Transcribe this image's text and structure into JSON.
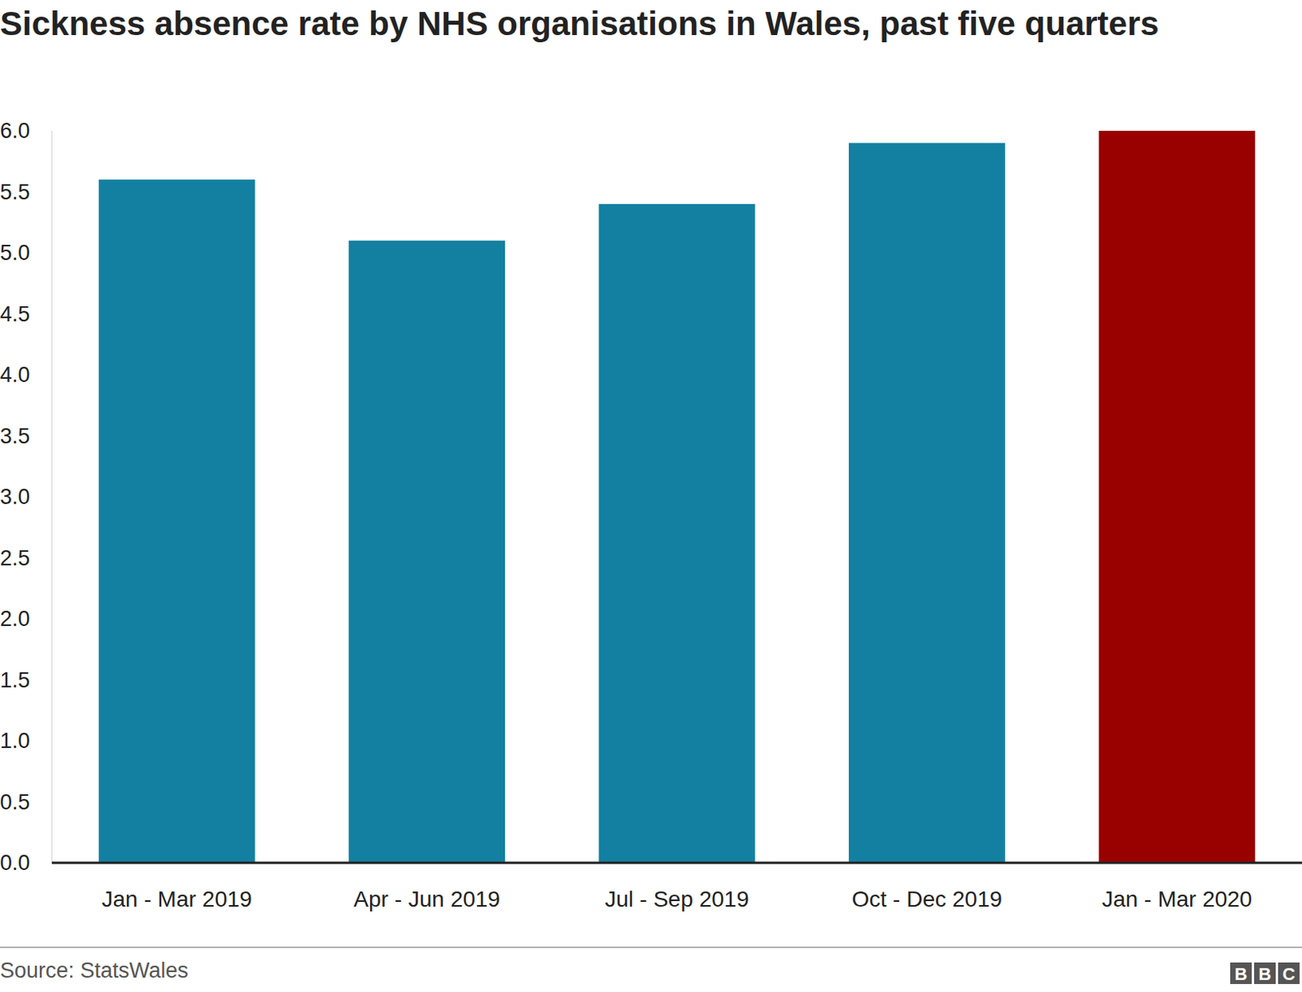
{
  "chart_data": {
    "type": "bar",
    "title": "Sickness absence rate by NHS organisations in Wales, past five quarters",
    "categories": [
      "Jan - Mar 2019",
      "Apr - Jun 2019",
      "Jul - Sep 2019",
      "Oct - Dec 2019",
      "Jan - Mar 2020"
    ],
    "values": [
      5.6,
      5.1,
      5.4,
      5.9,
      6.0
    ],
    "colors": [
      "#1380a1",
      "#1380a1",
      "#1380a1",
      "#1380a1",
      "#990000"
    ],
    "ylim": [
      0,
      6
    ],
    "yticks": [
      {
        "value": 0,
        "label": "0.0"
      },
      0.5,
      {
        "value": 1,
        "label": "1.0"
      },
      1.5,
      {
        "value": 2,
        "label": "2.0"
      },
      2.5,
      {
        "value": 3,
        "label": "3.0"
      },
      3.5,
      {
        "value": 4,
        "label": "4.0"
      },
      4.5,
      {
        "value": 5,
        "label": "5.0"
      },
      5.5,
      {
        "value": 6,
        "label": "6.0"
      }
    ],
    "grid": false,
    "source": "Source: StatsWales",
    "logo": "BBC"
  }
}
